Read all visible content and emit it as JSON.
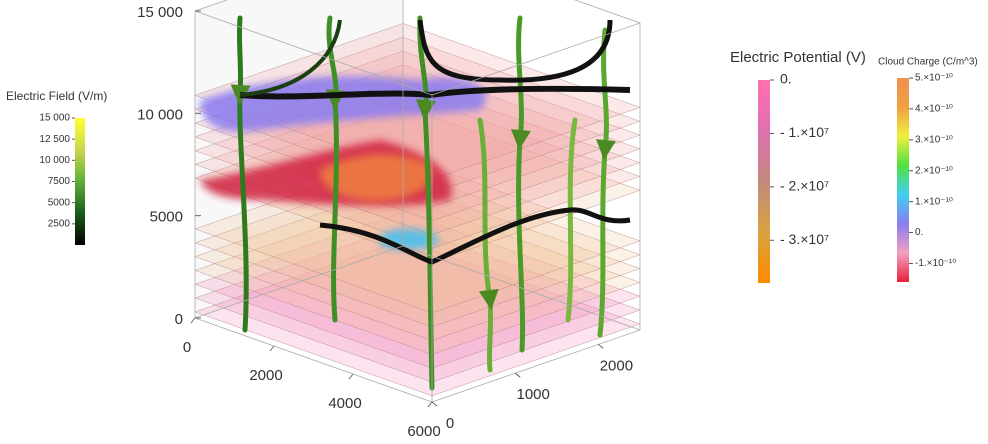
{
  "chart_data": {
    "type": "vector3d",
    "xlim": [
      0,
      6000
    ],
    "xticks": [
      0,
      2000,
      4000,
      6000
    ],
    "ylim": [
      0,
      2500
    ],
    "yticks": [
      0,
      1000,
      2000
    ],
    "zlim": [
      0,
      15000
    ],
    "zticks": [
      0,
      5000,
      {
        "value": 10000,
        "label": "10 000"
      },
      {
        "value": 15000,
        "label": "15 000"
      }
    ],
    "legends": [
      {
        "title": "Electric Field (V/m)",
        "lim": [
          0,
          15000
        ],
        "colors": [
          "#000000",
          "#1a5c1a",
          "#5fae3a",
          "#c9d84a",
          "#ffff33"
        ],
        "ticks": [
          {
            "value": 15000,
            "label": "15 000"
          },
          {
            "value": 12500,
            "label": "12 500"
          },
          {
            "value": 10000,
            "label": "10 000"
          },
          7500,
          5000,
          2500
        ]
      },
      {
        "title": "Electric Potential (V)",
        "lim": [
          -38000000,
          0
        ],
        "colors": [
          "#ff8a00",
          "#d8a340",
          "#c28a7e",
          "#e070b0",
          "#ff6fb0"
        ],
        "ticks": [
          {
            "value": 0,
            "label": "0."
          },
          {
            "value": -10000000,
            "label": "- 1.×10⁷"
          },
          {
            "value": -20000000,
            "label": "- 2.×10⁷"
          },
          {
            "value": -30000000,
            "label": "- 3.×10⁷"
          }
        ]
      },
      {
        "title": "Cloud Charge (C/m^3)",
        "lim": [
          -1.6e-10,
          5e-10
        ],
        "colors": [
          "#e8203a",
          "#f3a0c0",
          "#8a7cf0",
          "#40d0f0",
          "#50e040",
          "#f0f040",
          "#f0a040",
          "#f09050"
        ],
        "ticks": [
          {
            "value": 5e-10,
            "label": "5.×10⁻¹⁰"
          },
          {
            "value": 4e-10,
            "label": "4.×10⁻¹⁰"
          },
          {
            "value": 3e-10,
            "label": "3.×10⁻¹⁰"
          },
          {
            "value": 2e-10,
            "label": "2.×10⁻¹⁰"
          },
          {
            "value": 1e-10,
            "label": "1.×10⁻¹⁰"
          },
          {
            "value": 0,
            "label": "0."
          },
          {
            "value": -1e-10,
            "label": "-1.×10⁻¹⁰"
          }
        ]
      }
    ]
  }
}
